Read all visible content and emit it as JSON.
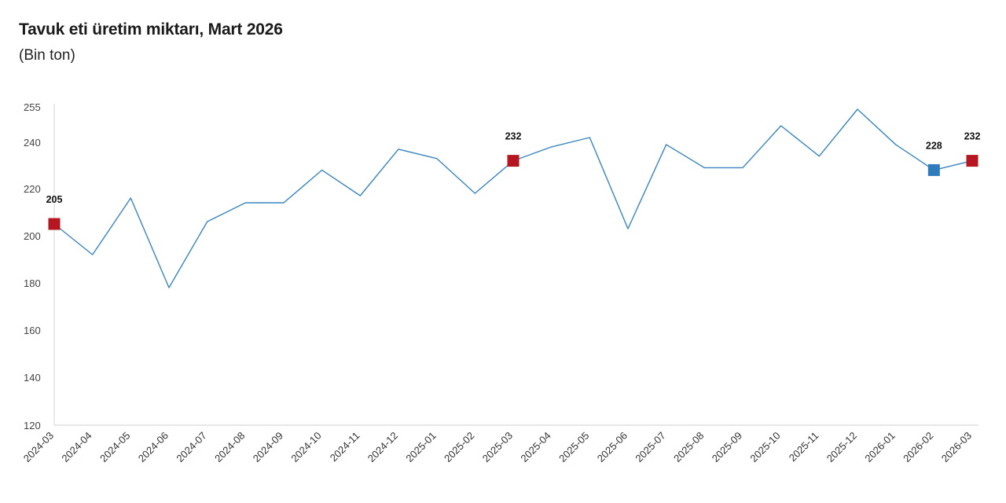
{
  "chart_data": {
    "type": "line",
    "title": "Tavuk eti üretim miktarı, Mart 2026",
    "subtitle": "(Bin ton)",
    "xlabel": "",
    "ylabel": "",
    "y_tick_labels": [
      "255",
      "240",
      "220",
      "200",
      "180",
      "160",
      "140",
      "120"
    ],
    "y_tick_values": [
      255,
      240,
      220,
      200,
      180,
      160,
      140,
      120
    ],
    "ylim": [
      120,
      255
    ],
    "grid": false,
    "categories": [
      "2024-03",
      "2024-04",
      "2024-05",
      "2024-06",
      "2024-07",
      "2024-08",
      "2024-09",
      "2024-10",
      "2024-11",
      "2024-12",
      "2025-01",
      "2025-02",
      "2025-03",
      "2025-04",
      "2025-05",
      "2025-06",
      "2025-07",
      "2025-08",
      "2025-09",
      "2025-10",
      "2025-11",
      "2025-12",
      "2026-01",
      "2026-02",
      "2026-03"
    ],
    "series": [
      {
        "values": [
          205,
          192,
          216,
          178,
          206,
          214,
          214,
          228,
          217,
          237,
          233,
          218,
          232,
          238,
          242,
          203,
          239,
          229,
          229,
          247,
          234,
          254,
          239,
          228,
          232
        ],
        "color": "#3a85c0"
      }
    ],
    "highlights": [
      {
        "index": 0,
        "label": "205",
        "color": "#b5161f"
      },
      {
        "index": 12,
        "label": "232",
        "color": "#b5161f"
      },
      {
        "index": 23,
        "label": "228",
        "color": "#2f7cbd"
      },
      {
        "index": 24,
        "label": "232",
        "color": "#b5161f"
      }
    ]
  }
}
